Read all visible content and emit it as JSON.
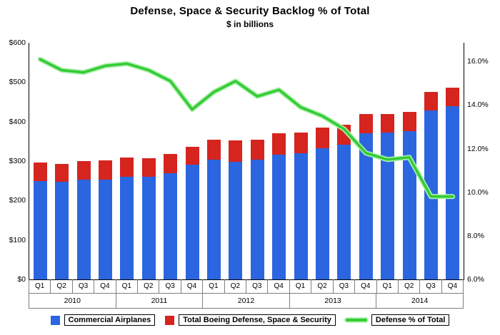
{
  "title": "Defense, Space & Security Backlog % of Total",
  "subtitle": "$ in billions",
  "colors": {
    "commercial_blue": "#2b66e0",
    "defense_red": "#d6241f",
    "line_green": "#33cc33"
  },
  "legend": [
    {
      "label": "Commercial Airplanes",
      "swatch": "box-blue"
    },
    {
      "label": "Total Boeing Defense, Space & Security",
      "swatch": "box-red"
    },
    {
      "label": "Defense % of Total",
      "swatch": "line-green"
    }
  ],
  "chart_data": {
    "type": "bar",
    "subtype": "stacked-bars-with-secondary-line",
    "quarters": [
      "Q1",
      "Q2",
      "Q3",
      "Q4",
      "Q1",
      "Q2",
      "Q3",
      "Q4",
      "Q1",
      "Q2",
      "Q3",
      "Q4",
      "Q1",
      "Q2",
      "Q3",
      "Q4",
      "Q1",
      "Q2",
      "Q3",
      "Q4"
    ],
    "years": [
      "2010",
      "2011",
      "2012",
      "2013",
      "2014"
    ],
    "series": [
      {
        "name": "Commercial Airplanes",
        "axis": "left",
        "unit": "$B",
        "values": [
          249,
          247,
          253,
          254,
          261,
          260,
          270,
          291,
          303,
          299,
          304,
          316,
          320,
          333,
          342,
          370,
          372,
          376,
          428,
          439
        ]
      },
      {
        "name": "Total Boeing Defense, Space & Security",
        "axis": "left",
        "unit": "$B",
        "values": [
          48,
          46,
          47,
          48,
          49,
          48,
          48,
          46,
          52,
          53,
          51,
          54,
          52,
          52,
          51,
          50,
          48,
          49,
          47,
          48
        ]
      },
      {
        "name": "Defense % of Total",
        "axis": "right",
        "unit": "%",
        "values": [
          16.1,
          15.6,
          15.5,
          15.8,
          15.9,
          15.6,
          15.1,
          13.8,
          14.6,
          15.1,
          14.4,
          14.7,
          13.9,
          13.5,
          12.9,
          11.8,
          11.5,
          11.6,
          9.8,
          9.8
        ]
      }
    ],
    "left_axis": {
      "min": 0,
      "max": 600,
      "tick_values": [
        0,
        100,
        200,
        300,
        400,
        500,
        600
      ],
      "tick_labels": [
        "$0",
        "$100",
        "$200",
        "$300",
        "$400",
        "$500",
        "$600"
      ]
    },
    "right_axis": {
      "min": 6,
      "max": 16.86,
      "tick_values": [
        6,
        8,
        10,
        12,
        14,
        16
      ],
      "tick_labels": [
        "6.0%",
        "8.0%",
        "10.0%",
        "12.0%",
        "14.0%",
        "16.0%"
      ]
    },
    "grid": "off",
    "legend_position": "bottom",
    "title": "Defense, Space & Security Backlog % of Total",
    "subtitle": "$ in billions"
  }
}
